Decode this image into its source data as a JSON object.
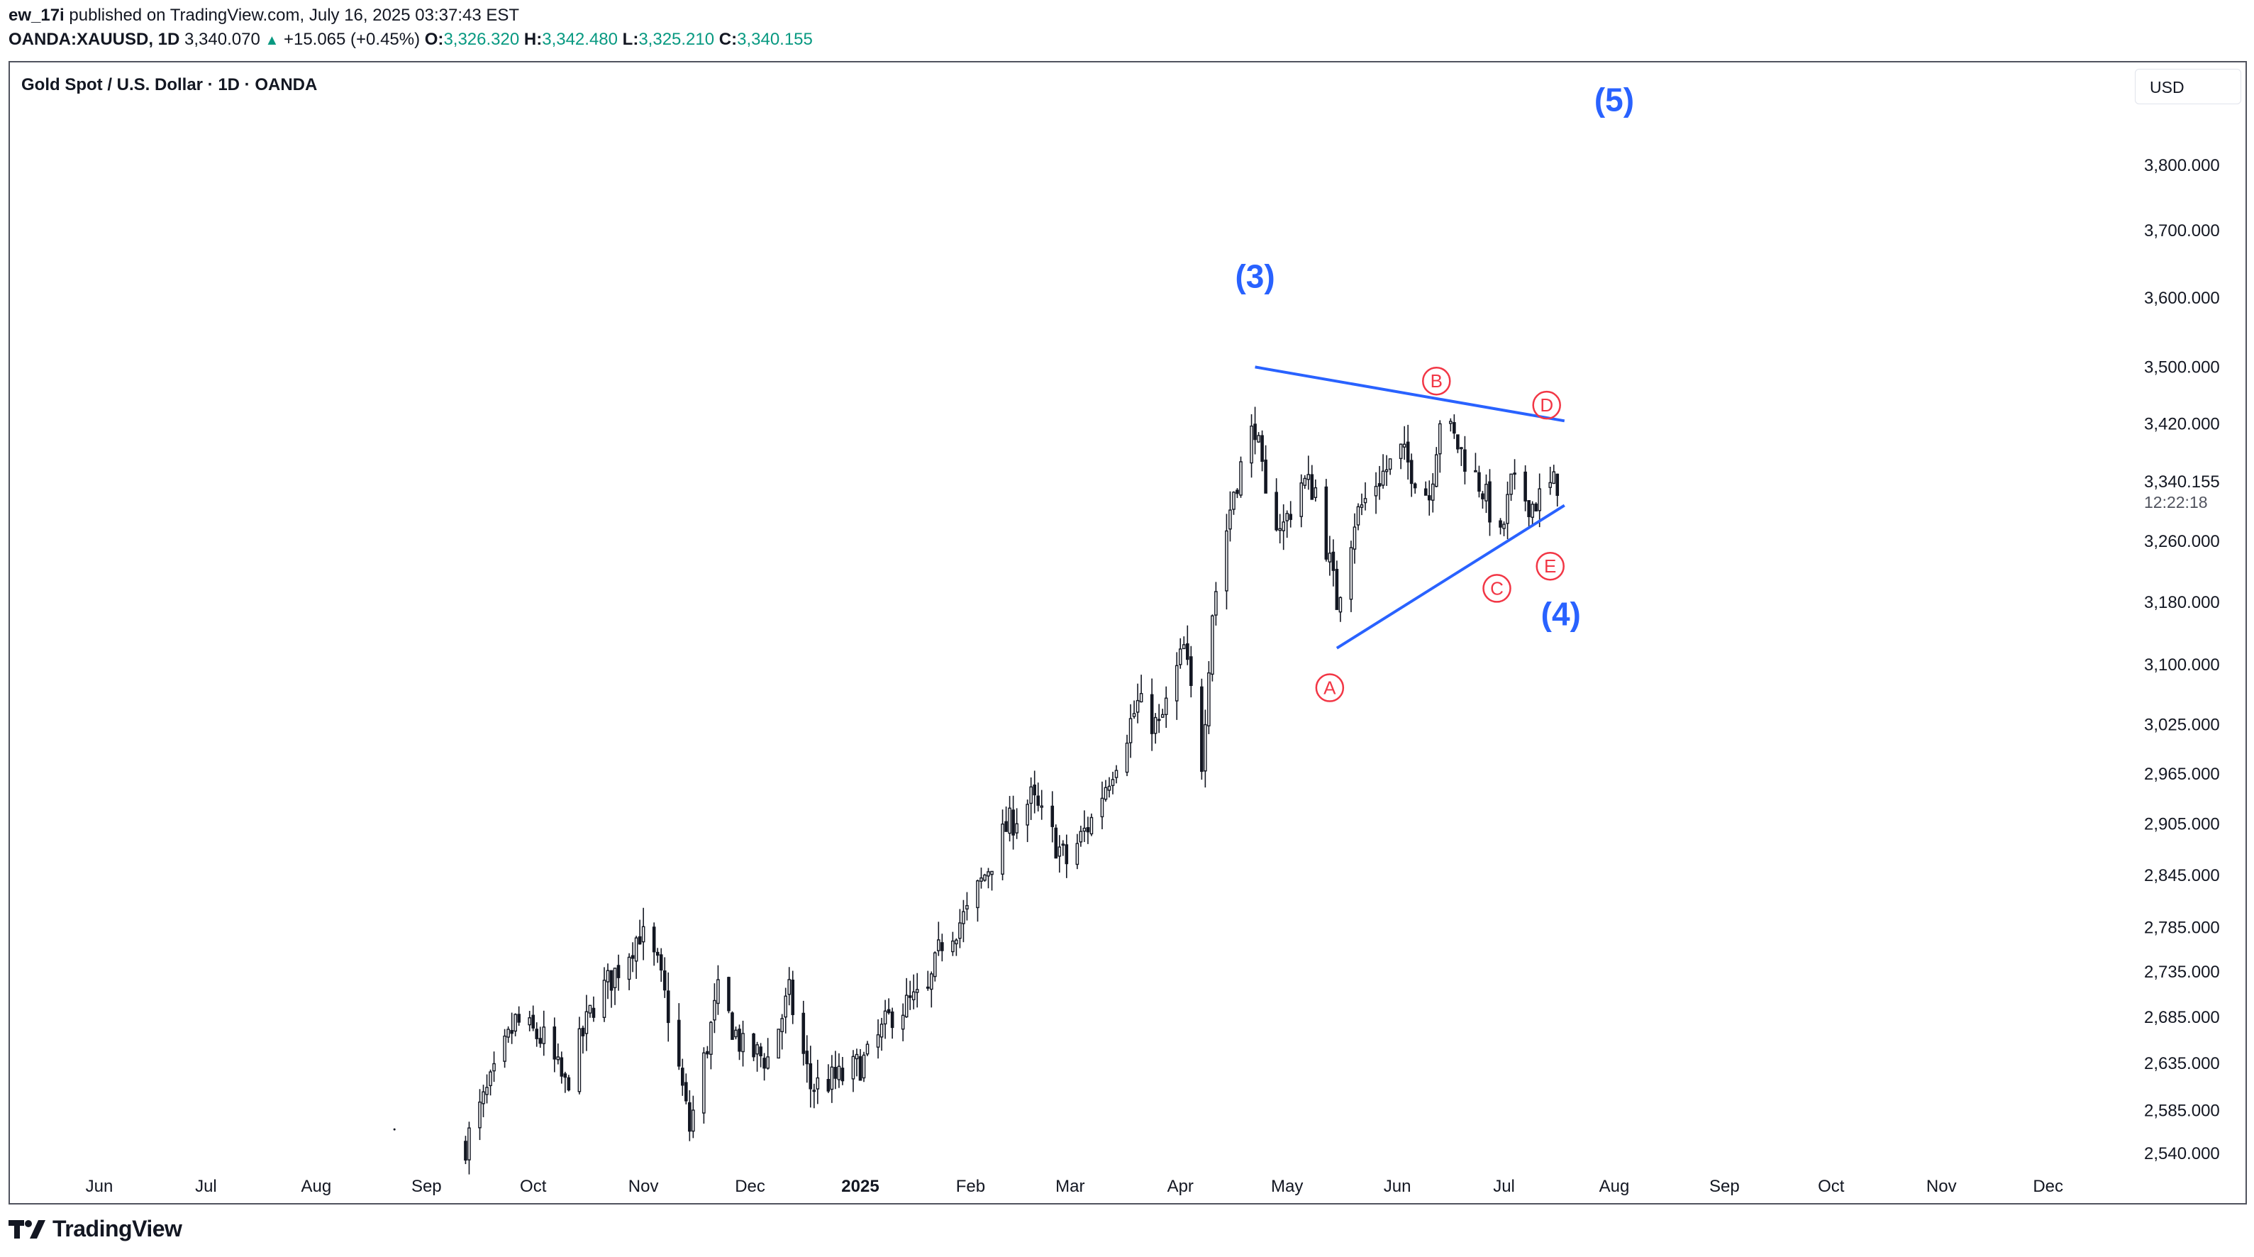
{
  "header": {
    "author": "ew_17i",
    "published": "published on TradingView.com, July 16, 2025 03:37:43 EST",
    "symbol": "OANDA:XAUUSD, 1D",
    "last": "3,340.070",
    "change": "+15.065 (+0.45%)",
    "o_label": "O:",
    "o": "3,326.320",
    "h_label": "H:",
    "h": "3,342.480",
    "l_label": "L:",
    "l": "3,325.210",
    "c_label": "C:",
    "c": "3,340.155"
  },
  "chart_title": "Gold Spot / U.S. Dollar · 1D · OANDA",
  "currency": "USD",
  "footer_brand": "TradingView",
  "colors": {
    "accent_green": "#089981",
    "wave_blue": "#2962ff",
    "wave_red": "#f23645",
    "candle": "#131722"
  },
  "chart_data": {
    "type": "candlestick",
    "x_ticks": [
      "Jun",
      "Jul",
      "Aug",
      "Sep",
      "Oct",
      "Nov",
      "Dec",
      "2025",
      "Feb",
      "Mar",
      "Apr",
      "May",
      "Jun",
      "Jul",
      "Aug",
      "Sep",
      "Oct",
      "Nov",
      "Dec"
    ],
    "y_ticks": [
      "3,800.000",
      "3,700.000",
      "3,600.000",
      "3,500.000",
      "3,420.000",
      "3,340.155",
      "3,260.000",
      "3,180.000",
      "3,100.000",
      "3,025.000",
      "2,965.000",
      "2,905.000",
      "2,845.000",
      "2,785.000",
      "2,735.000",
      "2,685.000",
      "2,635.000",
      "2,585.000",
      "2,540.000"
    ],
    "y_tick_values": [
      3800,
      3700,
      3600,
      3500,
      3420,
      3340.155,
      3260,
      3180,
      3100,
      3025,
      2965,
      2905,
      2845,
      2785,
      2735,
      2685,
      2635,
      2585,
      2540
    ],
    "last_price_label": "3,340.155",
    "countdown": "12:22:18",
    "log_scale": true,
    "grid": false,
    "anchor_closes": [
      [
        "2024-09-12",
        2550
      ],
      [
        "2024-09-20",
        2620
      ],
      [
        "2024-09-26",
        2680
      ],
      [
        "2024-10-04",
        2660
      ],
      [
        "2024-10-10",
        2610
      ],
      [
        "2024-10-18",
        2700
      ],
      [
        "2024-10-25",
        2740
      ],
      [
        "2024-10-31",
        2780
      ],
      [
        "2024-11-05",
        2740
      ],
      [
        "2024-11-08",
        2690
      ],
      [
        "2024-11-14",
        2565
      ],
      [
        "2024-11-22",
        2710
      ],
      [
        "2024-11-29",
        2650
      ],
      [
        "2024-12-06",
        2640
      ],
      [
        "2024-12-12",
        2710
      ],
      [
        "2024-12-18",
        2610
      ],
      [
        "2024-12-27",
        2620
      ],
      [
        "2025-01-03",
        2640
      ],
      [
        "2025-01-10",
        2690
      ],
      [
        "2025-01-20",
        2710
      ],
      [
        "2025-01-24",
        2770
      ],
      [
        "2025-01-31",
        2800
      ],
      [
        "2025-02-11",
        2900
      ],
      [
        "2025-02-18",
        2935
      ],
      [
        "2025-02-28",
        2860
      ],
      [
        "2025-03-07",
        2910
      ],
      [
        "2025-03-14",
        2985
      ],
      [
        "2025-03-20",
        3050
      ],
      [
        "2025-03-26",
        3020
      ],
      [
        "2025-04-02",
        3120
      ],
      [
        "2025-04-07",
        2980
      ],
      [
        "2025-04-10",
        3170
      ],
      [
        "2025-04-16",
        3330
      ],
      [
        "2025-04-22",
        3420
      ],
      [
        "2025-04-25",
        3310
      ],
      [
        "2025-04-30",
        3280
      ],
      [
        "2025-05-05",
        3340
      ],
      [
        "2025-05-09",
        3330
      ],
      [
        "2025-05-15",
        3180
      ],
      [
        "2025-05-20",
        3290
      ],
      [
        "2025-05-26",
        3340
      ],
      [
        "2025-06-02",
        3380
      ],
      [
        "2025-06-10",
        3320
      ],
      [
        "2025-06-13",
        3430
      ],
      [
        "2025-06-18",
        3390
      ],
      [
        "2025-06-25",
        3330
      ],
      [
        "2025-06-30",
        3260
      ],
      [
        "2025-07-03",
        3335
      ],
      [
        "2025-07-09",
        3310
      ],
      [
        "2025-07-16",
        3340
      ]
    ],
    "wave_labels": [
      "(3)",
      "(4)",
      "(5)",
      "A",
      "B",
      "C",
      "D",
      "E"
    ],
    "triangle_lines": [
      {
        "name": "upper",
        "from": [
          "2025-04-22",
          3500
        ],
        "to": [
          "2025-07-18",
          3424
        ]
      },
      {
        "name": "lower",
        "from": [
          "2025-05-15",
          3121
        ],
        "to": [
          "2025-07-18",
          3308
        ]
      }
    ]
  }
}
